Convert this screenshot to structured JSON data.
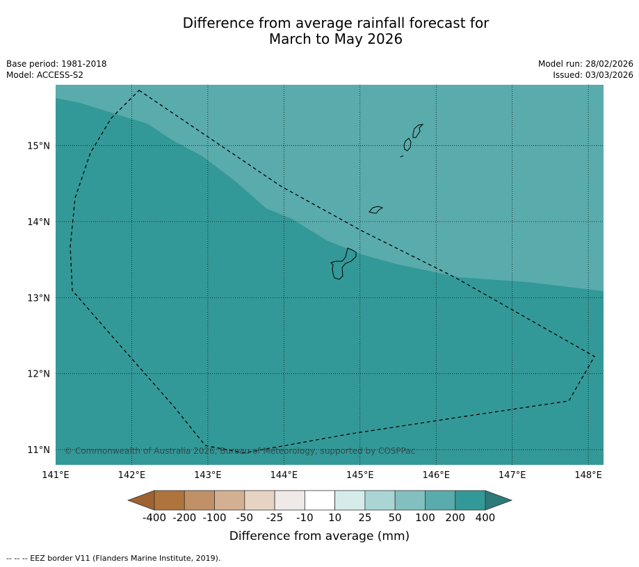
{
  "title": {
    "line1": "Difference from average rainfall forecast for",
    "line2": "March to May 2026"
  },
  "meta": {
    "base_period": "Base period: 1981-2018",
    "model": "Model: ACCESS-S2",
    "model_run": "Model run: 28/02/2026",
    "issued": "Issued: 03/03/2026"
  },
  "map": {
    "lon_range": [
      141.0,
      148.2
    ],
    "lat_range": [
      10.8,
      15.8
    ],
    "lon_ticks": [
      {
        "value": 141,
        "label": "141°E"
      },
      {
        "value": 142,
        "label": "142°E"
      },
      {
        "value": 143,
        "label": "143°E"
      },
      {
        "value": 144,
        "label": "144°E"
      },
      {
        "value": 145,
        "label": "145°E"
      },
      {
        "value": 146,
        "label": "146°E"
      },
      {
        "value": 147,
        "label": "147°E"
      },
      {
        "value": 148,
        "label": "148°E"
      }
    ],
    "lat_ticks": [
      {
        "value": 15,
        "label": "15°N"
      },
      {
        "value": 14,
        "label": "14°N"
      },
      {
        "value": 13,
        "label": "13°N"
      },
      {
        "value": 12,
        "label": "12°N"
      },
      {
        "value": 11,
        "label": "11°N"
      }
    ],
    "fill_colors": {
      "high_category": "#5aabac",
      "base_category": "#339998"
    },
    "copyright": "© Commonwealth of Australia 2026, Bureau of Meteorology, supported by COSPPac"
  },
  "colorbar": {
    "title": "Difference from average (mm)",
    "labels": [
      "-400",
      "-200",
      "-100",
      "-50",
      "-25",
      "-10",
      "10",
      "25",
      "50",
      "100",
      "200",
      "400"
    ],
    "colors": [
      "#ae743c",
      "#c09066",
      "#d3b091",
      "#e7d3c2",
      "#efe9e7",
      "#ffffff",
      "#d5eceb",
      "#aad5d5",
      "#82c0c0",
      "#5aabac",
      "#339998"
    ],
    "under_color": "#9e6330",
    "over_color": "#2c7a7a"
  },
  "legend_note": "--  --  -- EEZ border V11 (Flanders Marine Institute, 2019)."
}
